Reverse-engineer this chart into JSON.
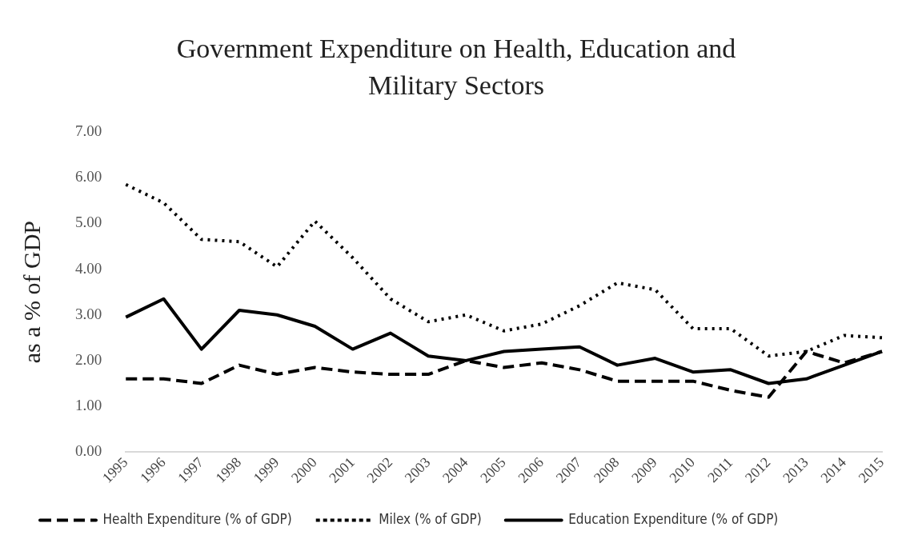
{
  "chart_data": {
    "type": "line",
    "title": "Government Expenditure on Health, Education and Military Sectors",
    "ylabel": "as a % of GDP",
    "categories": [
      "1995",
      "1996",
      "1997",
      "1998",
      "1999",
      "2000",
      "2001",
      "2002",
      "2003",
      "2004",
      "2005",
      "2006",
      "2007",
      "2008",
      "2009",
      "2010",
      "2011",
      "2012",
      "2013",
      "2014",
      "2015"
    ],
    "series": [
      {
        "name": "Health Expenditure (% of GDP)",
        "color": "#000000",
        "line_style": "dashed",
        "values": [
          1.6,
          1.6,
          1.5,
          1.9,
          1.7,
          1.85,
          1.75,
          1.7,
          1.7,
          2.0,
          1.85,
          1.95,
          1.8,
          1.55,
          1.55,
          1.55,
          1.35,
          1.2,
          2.2,
          1.95,
          2.2
        ]
      },
      {
        "name": "Milex (% of GDP)",
        "color": "#000000",
        "line_style": "dotted",
        "values": [
          5.85,
          5.45,
          4.65,
          4.6,
          4.05,
          5.05,
          4.25,
          3.35,
          2.85,
          3.0,
          2.65,
          2.8,
          3.2,
          3.7,
          3.55,
          2.7,
          2.7,
          2.1,
          2.2,
          2.55,
          2.5
        ]
      },
      {
        "name": "Education Expenditure (% of GDP)",
        "color": "#000000",
        "line_style": "solid",
        "values": [
          2.95,
          3.35,
          2.25,
          3.1,
          3.0,
          2.75,
          2.25,
          2.6,
          2.1,
          2.0,
          2.2,
          2.25,
          2.3,
          1.9,
          2.05,
          1.75,
          1.8,
          1.5,
          1.6,
          1.9,
          2.2
        ]
      }
    ],
    "ylim": [
      0,
      7
    ],
    "yticks": [
      {
        "value": 0,
        "label": "0.00"
      },
      {
        "value": 1,
        "label": "1.00"
      },
      {
        "value": 2,
        "label": "2.00"
      },
      {
        "value": 3,
        "label": "3.00"
      },
      {
        "value": 4,
        "label": "4.00"
      },
      {
        "value": 5,
        "label": "5.00"
      },
      {
        "value": 6,
        "label": "6.00"
      },
      {
        "value": 7,
        "label": "7.00"
      }
    ],
    "grid": false,
    "legend": "bottom",
    "marker": "none"
  }
}
